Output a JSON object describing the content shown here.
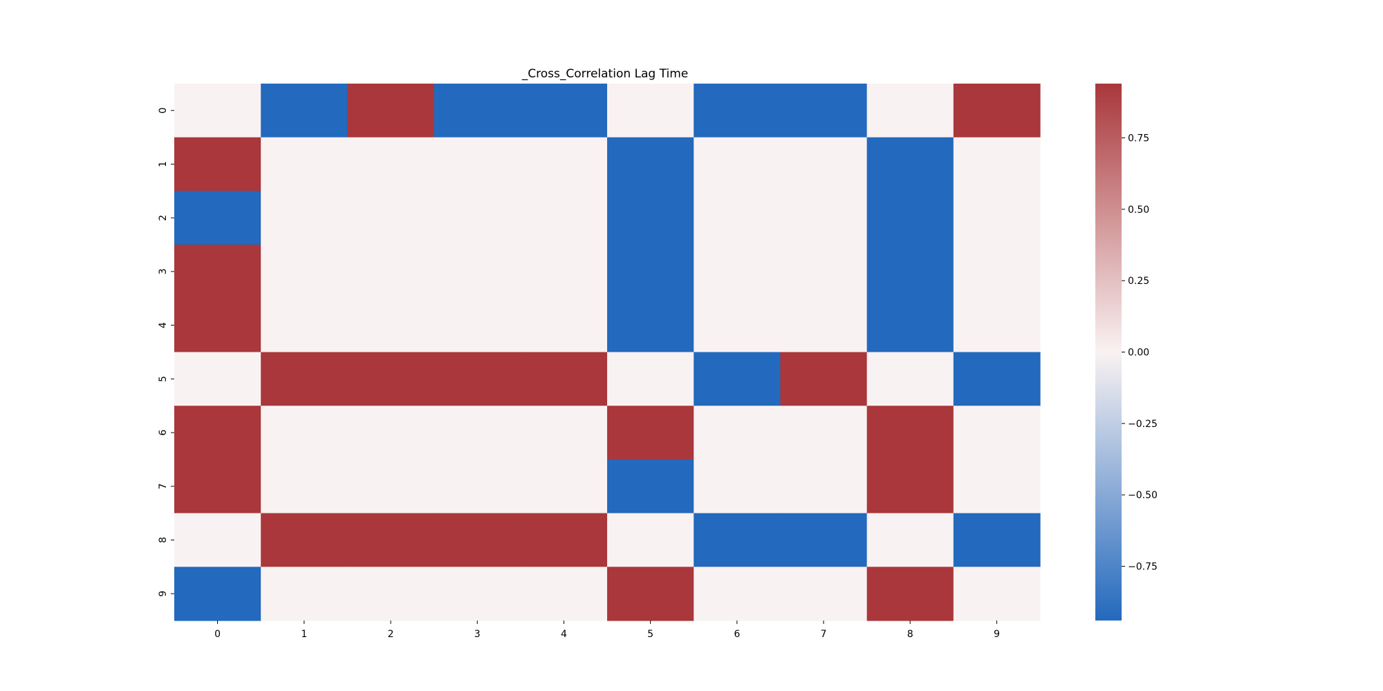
{
  "chart_data": {
    "type": "heatmap",
    "title": "_Cross_Correlation Lag Time",
    "xlabel": "",
    "ylabel": "",
    "x_categories": [
      "0",
      "1",
      "2",
      "3",
      "4",
      "5",
      "6",
      "7",
      "8",
      "9"
    ],
    "y_categories": [
      "0",
      "1",
      "2",
      "3",
      "4",
      "5",
      "6",
      "7",
      "8",
      "9"
    ],
    "values": [
      [
        0.0,
        -0.94,
        0.94,
        -0.94,
        -0.94,
        0.0,
        -0.94,
        -0.94,
        0.0,
        0.94
      ],
      [
        0.94,
        0.0,
        0.0,
        0.0,
        0.0,
        -0.94,
        0.0,
        0.0,
        -0.94,
        0.0
      ],
      [
        -0.94,
        0.0,
        0.0,
        0.0,
        0.0,
        -0.94,
        0.0,
        0.0,
        -0.94,
        0.0
      ],
      [
        0.94,
        0.0,
        0.0,
        0.0,
        0.0,
        -0.94,
        0.0,
        0.0,
        -0.94,
        0.0
      ],
      [
        0.94,
        0.0,
        0.0,
        0.0,
        0.0,
        -0.94,
        0.0,
        0.0,
        -0.94,
        0.0
      ],
      [
        0.0,
        0.94,
        0.94,
        0.94,
        0.94,
        0.0,
        -0.94,
        0.94,
        0.0,
        -0.94
      ],
      [
        0.94,
        0.0,
        0.0,
        0.0,
        0.0,
        0.94,
        0.0,
        0.0,
        0.94,
        0.0
      ],
      [
        0.94,
        0.0,
        0.0,
        0.0,
        0.0,
        -0.94,
        0.0,
        0.0,
        0.94,
        0.0
      ],
      [
        0.0,
        0.94,
        0.94,
        0.94,
        0.94,
        0.0,
        -0.94,
        -0.94,
        0.0,
        -0.94
      ],
      [
        -0.94,
        0.0,
        0.0,
        0.0,
        0.0,
        0.94,
        0.0,
        0.0,
        0.94,
        0.0
      ]
    ],
    "colorbar": {
      "vmin": -0.94,
      "vmax": 0.94,
      "ticks": [
        -0.75,
        -0.5,
        -0.25,
        0.0,
        0.25,
        0.5,
        0.75
      ],
      "tick_labels": [
        "−0.75",
        "−0.50",
        "−0.25",
        "0.00",
        "0.25",
        "0.50",
        "0.75"
      ],
      "colormap": "vlag",
      "colors": {
        "low": "#2369bd",
        "mid": "#f9f2f2",
        "high": "#a9373b"
      }
    },
    "grid": false,
    "legend": "colorbar-right"
  }
}
